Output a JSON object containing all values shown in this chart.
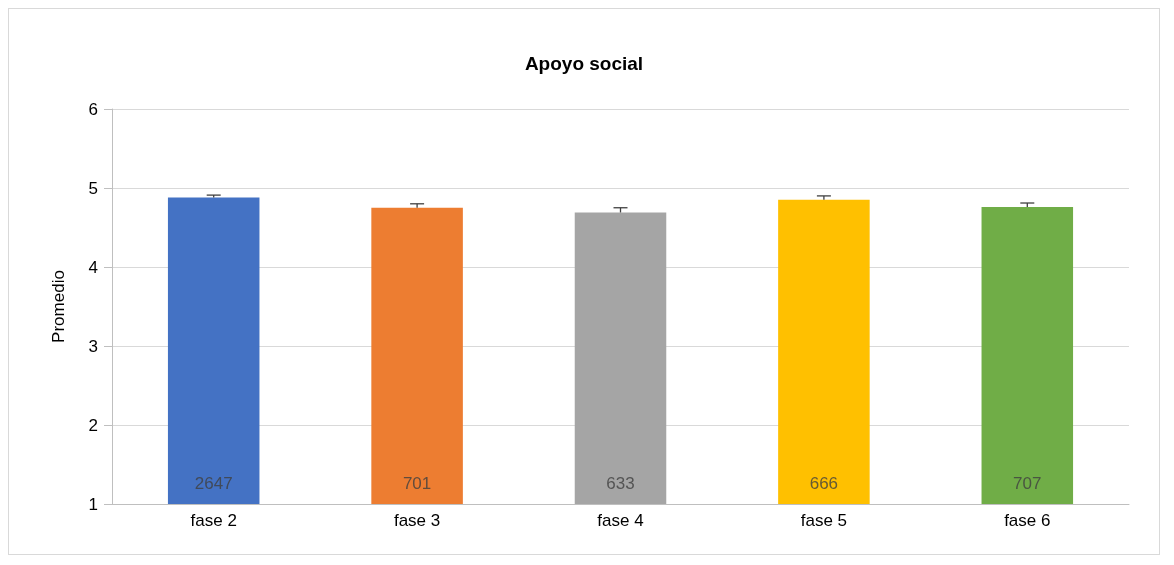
{
  "chart_data": {
    "type": "bar",
    "title": "Apoyo social",
    "ylabel": "Promedio",
    "categories": [
      "fase 2",
      "fase 3",
      "fase 4",
      "fase 5",
      "fase 6"
    ],
    "values": [
      4.88,
      4.75,
      4.69,
      4.85,
      4.76
    ],
    "colors": [
      "#4472c4",
      "#ed7d31",
      "#a5a5a5",
      "#ffc000",
      "#70ad47"
    ],
    "errors": [
      [
        4.88,
        4.91
      ],
      [
        4.75,
        4.8
      ],
      [
        4.69,
        4.75
      ],
      [
        4.85,
        4.9
      ],
      [
        4.76,
        4.81
      ]
    ],
    "annotations": [
      "2647",
      "701",
      "633",
      "666",
      "707"
    ],
    "ylim": [
      1,
      6
    ],
    "yticks": [
      1,
      2,
      3,
      4,
      5,
      6
    ],
    "grid": "y"
  }
}
